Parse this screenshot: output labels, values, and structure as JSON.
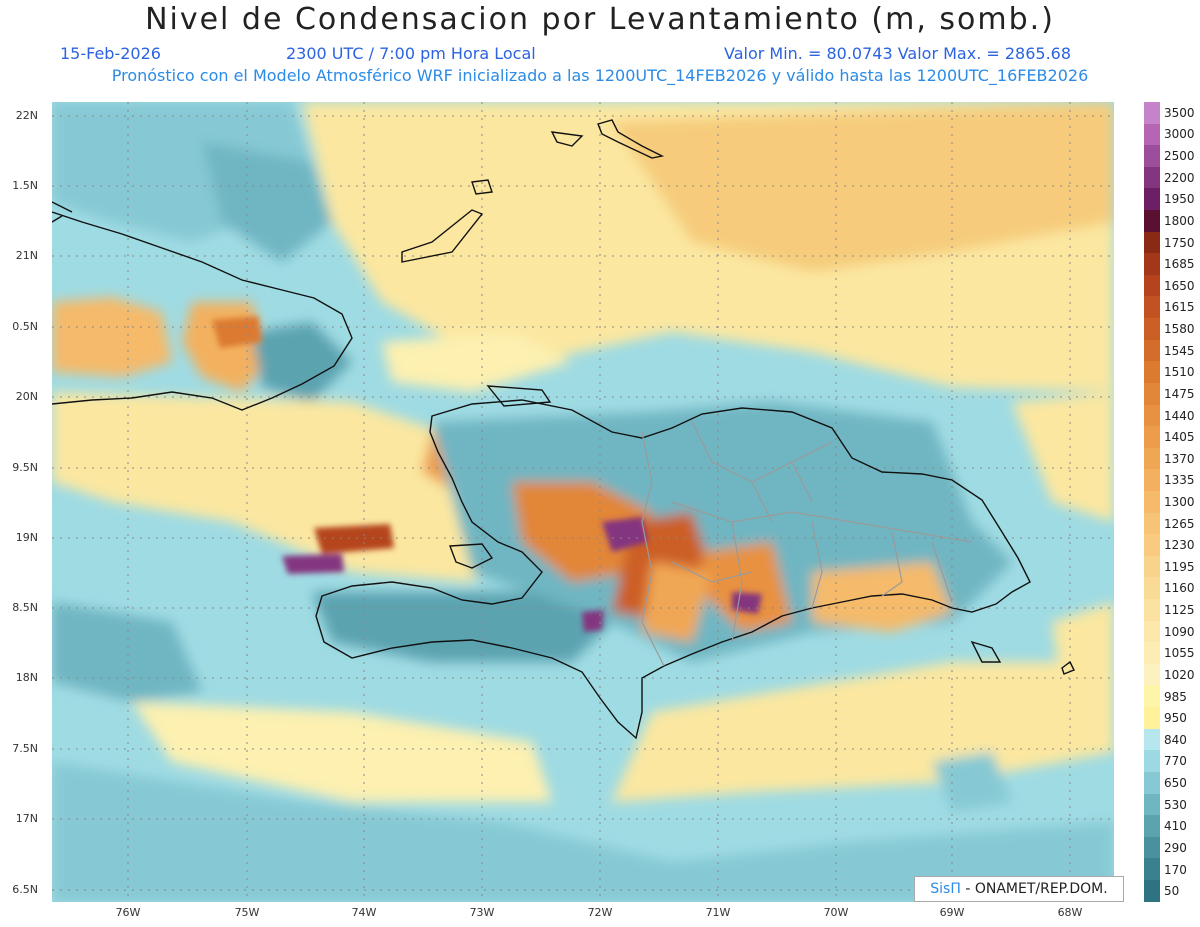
{
  "header": {
    "title": "Nivel de Condensacion por Levantamiento (m, somb.)",
    "date": "15-Feb-2026",
    "time": "2300 UTC / 7:00 pm Hora Local",
    "min_max": "Valor Min. = 80.0743   Valor Max. = 2865.68",
    "description": "Pronóstico con el Modelo Atmosférico WRF inicializado a las 1200UTC_14FEB2026 y válido hasta las  1200UTC_16FEB2026"
  },
  "axes": {
    "lat_labels": [
      "22N",
      "1.5N",
      "21N",
      "0.5N",
      "20N",
      "9.5N",
      "19N",
      "8.5N",
      "18N",
      "7.5N",
      "17N",
      "6.5N"
    ],
    "lon_labels": [
      "76W",
      "75W",
      "74W",
      "73W",
      "72W",
      "71W",
      "70W",
      "69W",
      "68W"
    ]
  },
  "colorbar": {
    "labels": [
      "3500",
      "3000",
      "2500",
      "2200",
      "1950",
      "1800",
      "1750",
      "1685",
      "1650",
      "1615",
      "1580",
      "1545",
      "1510",
      "1475",
      "1440",
      "1405",
      "1370",
      "1335",
      "1300",
      "1265",
      "1230",
      "1195",
      "1160",
      "1125",
      "1090",
      "1055",
      "1020",
      "985",
      "950",
      "840",
      "770",
      "650",
      "530",
      "410",
      "290",
      "170",
      "50"
    ],
    "colors": [
      "#c783c9",
      "#b565b4",
      "#9c4d9c",
      "#84357f",
      "#6d1f66",
      "#5a1030",
      "#8a2a14",
      "#a3371a",
      "#b5441e",
      "#c25222",
      "#cc5f26",
      "#d46d2b",
      "#dc7a30",
      "#e28637",
      "#e89140",
      "#ec9c4a",
      "#f0a754",
      "#f3b15f",
      "#f5ba6a",
      "#f7c375",
      "#f8cb80",
      "#f9d38b",
      "#fadb96",
      "#fbe2a0",
      "#fce8aa",
      "#fdedb4",
      "#fdf1bd",
      "#fff5a8",
      "#fff29a",
      "#b7e7ee",
      "#9cd9e2",
      "#86c9d4",
      "#70b6c2",
      "#5ca3b0",
      "#4a919f",
      "#3a808f",
      "#2f7383"
    ]
  },
  "footer": {
    "brand_symbol": "SisΠ",
    "brand_text": " - ONAMET/REP.DOM."
  }
}
